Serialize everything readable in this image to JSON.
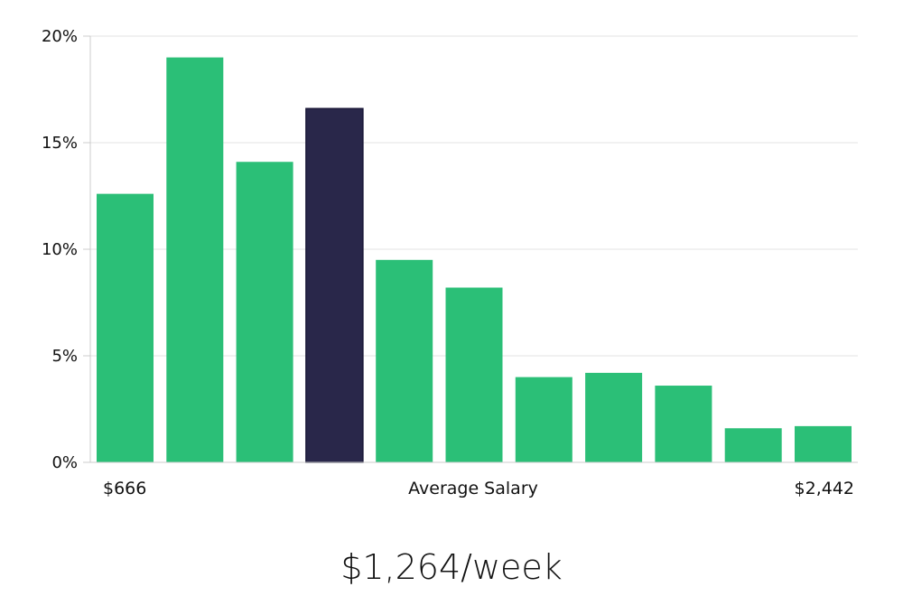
{
  "chart_data": {
    "type": "bar",
    "values": [
      12.6,
      19.0,
      14.1,
      16.6,
      9.5,
      8.2,
      4.0,
      4.2,
      3.6,
      1.6,
      1.7
    ],
    "highlight_index": 3,
    "ylim": [
      0,
      20
    ],
    "yticks": [
      0,
      5,
      10,
      15,
      20
    ],
    "ytick_format": "%",
    "grid": true,
    "colors": {
      "bar": "#2bbf77",
      "highlight": "#29274a",
      "grid": "#e3e3e3",
      "axis": "#cccccc"
    },
    "x_labels": {
      "min": "$666",
      "center": "Average Salary",
      "max": "$2,442"
    }
  },
  "summary": {
    "salary": "$1,264/week"
  }
}
